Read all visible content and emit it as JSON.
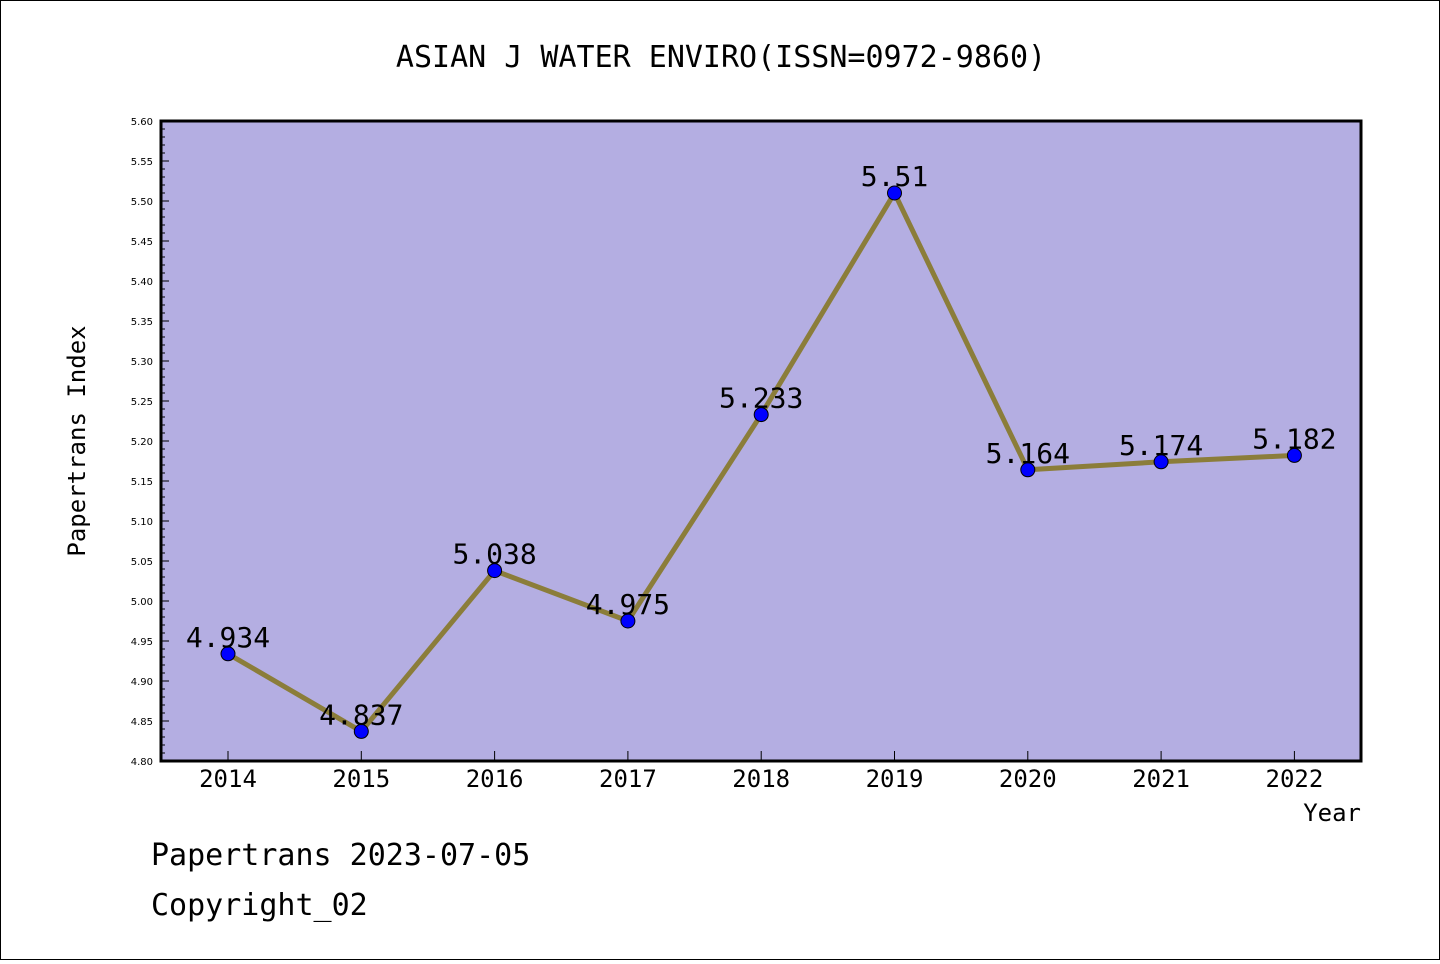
{
  "chart_data": {
    "type": "line",
    "title": "ASIAN J WATER ENVIRO(ISSN=0972-9860)",
    "xlabel": "Year",
    "ylabel": "Papertrans Index",
    "categories": [
      "2014",
      "2015",
      "2016",
      "2017",
      "2018",
      "2019",
      "2020",
      "2021",
      "2022"
    ],
    "series": [
      {
        "values": [
          4.934,
          4.837,
          5.038,
          4.975,
          5.233,
          5.51,
          5.164,
          5.174,
          5.182
        ],
        "labels": [
          "4.934",
          "4.837",
          "5.038",
          "4.975",
          "5.233",
          "5.51",
          "5.164",
          "5.174",
          "5.182"
        ]
      }
    ],
    "ylim": [
      4.8,
      5.6
    ],
    "yticks": [
      "4.80",
      "4.85",
      "4.90",
      "4.95",
      "5.00",
      "5.05",
      "5.10",
      "5.15",
      "5.20",
      "5.25",
      "5.30",
      "5.35",
      "5.40",
      "5.45",
      "5.50",
      "5.55",
      "5.60"
    ],
    "grid": false,
    "colors": {
      "plot_background": "#b4aee2",
      "line": "#8b7d3a",
      "marker": "#0000ff"
    }
  },
  "footer": {
    "date_line": "Papertrans 2023-07-05",
    "copyright": "Copyright_02"
  }
}
